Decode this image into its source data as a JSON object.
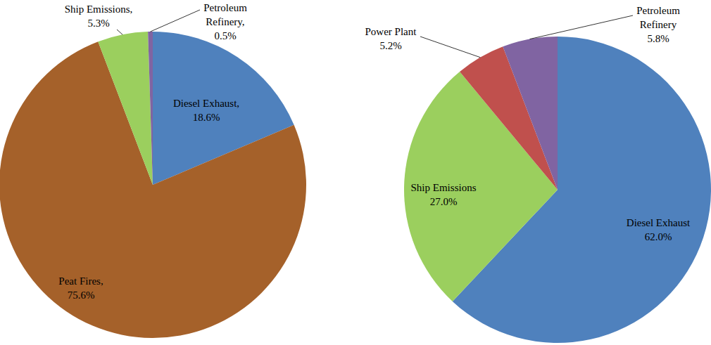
{
  "chart_data": [
    {
      "type": "pie",
      "categories": [
        "Diesel Exhaust,",
        "Peat Fires,",
        "Ship Emissions,",
        "Petroleum Refinery,"
      ],
      "values": [
        18.6,
        75.6,
        5.3,
        0.5
      ],
      "value_labels": [
        "18.6%",
        "75.6%",
        "5.3%",
        "0.5%"
      ],
      "colors": [
        "#4f81bd",
        "#a5612a",
        "#9bcf5e",
        "#8064a2"
      ],
      "data_labels": true
    },
    {
      "type": "pie",
      "categories": [
        "Diesel Exhaust",
        "Ship Emissions",
        "Power Plant",
        "Petroleum Refinery"
      ],
      "values": [
        62.0,
        27.0,
        5.2,
        5.8
      ],
      "value_labels": [
        "62.0%",
        "27.0%",
        "5.2%",
        "5.8%"
      ],
      "colors": [
        "#4f81bd",
        "#9bcf5e",
        "#c0504d",
        "#8064a2"
      ],
      "data_labels": true
    }
  ]
}
